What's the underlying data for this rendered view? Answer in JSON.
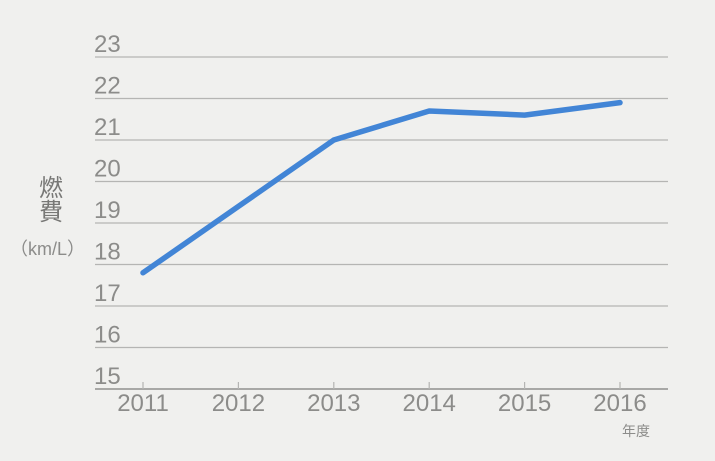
{
  "chart_data": {
    "type": "line",
    "title": "",
    "categories": [
      "2011",
      "2012",
      "2013",
      "2014",
      "2015",
      "2016"
    ],
    "series": [
      {
        "name": "燃費",
        "values": [
          17.8,
          19.4,
          21.0,
          21.7,
          21.6,
          21.9
        ]
      }
    ],
    "ylabel": "燃費",
    "ylabel_unit": "（km/L）",
    "xlabel": "年度",
    "ylim": [
      15,
      23
    ],
    "yticks": [
      15,
      16,
      17,
      18,
      19,
      20,
      21,
      22,
      23
    ],
    "grid": true,
    "legend": "none",
    "colors": {
      "line": "#4285d6",
      "background": "#f0f0ee",
      "gridline": "#b5b5b3",
      "axis": "#9e9e9c",
      "tick_text": "#8c8c8a",
      "axis_title_text": "#787876"
    }
  }
}
